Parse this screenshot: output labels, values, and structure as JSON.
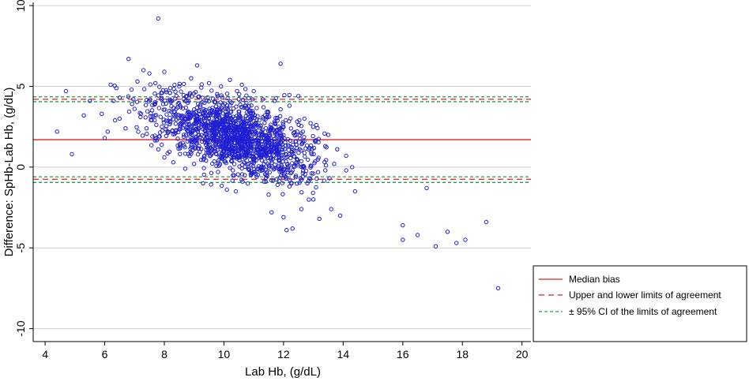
{
  "chart_data": {
    "type": "scatter",
    "xlabel": "Lab Hb, (g/dL)",
    "ylabel": "Difference: SpHb-Lab Hb, (g/dL)",
    "xlim": [
      3.6,
      20.3
    ],
    "ylim": [
      -10.8,
      10.2
    ],
    "xticks": [
      4,
      6,
      8,
      10,
      12,
      14,
      16,
      18,
      20
    ],
    "yticks": [
      10,
      5,
      0,
      -5,
      -10
    ],
    "grid": "horizontal",
    "legend_placement": "right",
    "colors": {
      "points": "#1f1fd1",
      "median": "#e02020",
      "loa": "#e02020",
      "ci": "#2a9a3a",
      "grid": "#d0d0d0"
    },
    "series": [
      {
        "name": "Median bias",
        "kind": "hline",
        "style": "solid",
        "y": 1.7
      },
      {
        "name": "Upper and lower limits of agreement",
        "kind": "hline",
        "style": "dashed",
        "y": [
          4.2,
          -0.75
        ]
      },
      {
        "name": "± 95% CI of the limits of agreement",
        "kind": "hline",
        "style": "dashed",
        "y": [
          4.35,
          4.05,
          -0.6,
          -0.95
        ]
      }
    ],
    "points": [
      [
        7.8,
        9.2
      ],
      [
        4.7,
        4.7
      ],
      [
        6.8,
        6.7
      ],
      [
        6.2,
        5.1
      ],
      [
        4.9,
        0.8
      ],
      [
        5.3,
        3.2
      ],
      [
        4.4,
        2.2
      ],
      [
        5.5,
        4.1
      ],
      [
        5.9,
        3.3
      ],
      [
        6.1,
        2.2
      ],
      [
        6.0,
        1.8
      ],
      [
        6.3,
        4.1
      ],
      [
        6.5,
        3.0
      ],
      [
        6.5,
        4.3
      ],
      [
        6.7,
        2.4
      ],
      [
        7.0,
        3.6
      ],
      [
        7.3,
        6.0
      ],
      [
        7.5,
        5.8
      ],
      [
        7.9,
        4.2
      ],
      [
        8.0,
        5.9
      ],
      [
        8.2,
        4.9
      ],
      [
        9.1,
        6.3
      ],
      [
        10.2,
        5.4
      ],
      [
        11.9,
        6.4
      ],
      [
        12.5,
        4.4
      ],
      [
        14.3,
        0.0
      ],
      [
        13.5,
        2.0
      ],
      [
        13.8,
        1.1
      ],
      [
        14.1,
        0.7
      ],
      [
        14.1,
        -0.2
      ],
      [
        14.4,
        -1.5
      ],
      [
        13.2,
        -3.2
      ],
      [
        12.6,
        -2.6
      ],
      [
        13.0,
        -2.0
      ],
      [
        12.8,
        -1.0
      ],
      [
        11.5,
        -1.7
      ],
      [
        12.1,
        -3.9
      ],
      [
        12.3,
        -3.8
      ],
      [
        12.0,
        -3.1
      ],
      [
        11.6,
        -2.8
      ],
      [
        13.6,
        -2.6
      ],
      [
        13.9,
        -3.0
      ],
      [
        10.4,
        -1.5
      ],
      [
        9.3,
        -1.0
      ],
      [
        10.1,
        -1.4
      ],
      [
        16.0,
        -4.5
      ],
      [
        16.0,
        -3.6
      ],
      [
        16.5,
        -4.2
      ],
      [
        16.8,
        -1.3
      ],
      [
        17.1,
        -4.9
      ],
      [
        17.5,
        -4.0
      ],
      [
        17.8,
        -4.7
      ],
      [
        18.1,
        -4.5
      ],
      [
        18.8,
        -3.4
      ],
      [
        19.2,
        -7.5
      ],
      [
        7.2,
        3.1
      ],
      [
        7.4,
        2.4
      ],
      [
        7.6,
        1.9
      ],
      [
        7.8,
        1.1
      ],
      [
        8.0,
        0.6
      ],
      [
        8.3,
        0.3
      ],
      [
        8.7,
        -0.1
      ],
      [
        9.0,
        0.2
      ],
      [
        9.4,
        0.4
      ],
      [
        9.8,
        -0.3
      ],
      [
        10.3,
        -0.2
      ],
      [
        10.7,
        -0.5
      ],
      [
        11.1,
        -0.6
      ],
      [
        11.4,
        -0.9
      ],
      [
        11.8,
        -1.1
      ],
      [
        12.2,
        -1.2
      ],
      [
        12.6,
        -0.8
      ],
      [
        13.0,
        -0.4
      ],
      [
        13.4,
        -0.2
      ],
      [
        13.7,
        0.2
      ],
      [
        6.9,
        4.8
      ],
      [
        7.1,
        5.3
      ],
      [
        7.7,
        5.2
      ],
      [
        8.5,
        5.0
      ],
      [
        8.9,
        5.5
      ],
      [
        9.5,
        5.2
      ],
      [
        9.9,
        5.0
      ],
      [
        10.6,
        5.1
      ],
      [
        11.0,
        4.7
      ],
      [
        11.3,
        4.2
      ],
      [
        11.7,
        4.1
      ],
      [
        12.2,
        3.8
      ],
      [
        12.7,
        3.0
      ],
      [
        13.1,
        2.6
      ],
      [
        13.4,
        1.3
      ]
    ],
    "cluster": {
      "count": 1500,
      "x_mean": 10.4,
      "x_sd": 1.35,
      "y_at_x10": 2.1,
      "y_slope": -0.55,
      "y_sd": 1.05,
      "x_range": [
        6.0,
        13.6
      ]
    }
  },
  "legend": {
    "items": [
      {
        "label": "Median bias",
        "style": "solid",
        "color": "#e02020"
      },
      {
        "label": "Upper and lower limits of agreement",
        "style": "dashed",
        "color": "#e02020"
      },
      {
        "label": "± 95% CI of the limits of agreement",
        "style": "dashed",
        "color": "#2a9a3a"
      }
    ]
  }
}
